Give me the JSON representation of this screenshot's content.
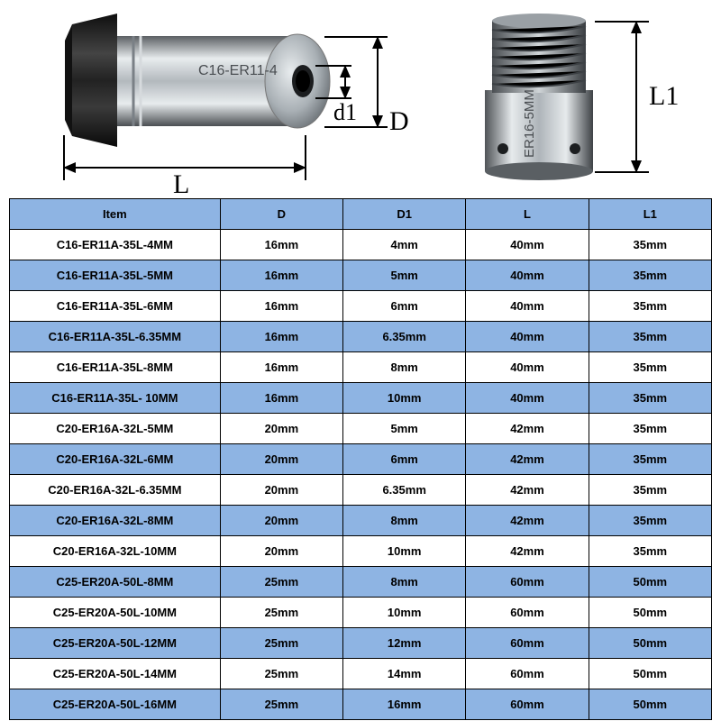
{
  "diagram": {
    "labels": {
      "L": "L",
      "D": "D",
      "d1": "d1",
      "L1": "L1"
    },
    "left_part_text": "C16-ER11-4",
    "right_part_text": "ER16-5MM"
  },
  "table": {
    "header_bg": "#8eb4e3",
    "alt_bg": "#8eb4e3",
    "columns": [
      "Item",
      "D",
      "D1",
      "L",
      "L1"
    ],
    "rows": [
      [
        "C16-ER11A-35L-4MM",
        "16mm",
        "4mm",
        "40mm",
        "35mm"
      ],
      [
        "C16-ER11A-35L-5MM",
        "16mm",
        "5mm",
        "40mm",
        "35mm"
      ],
      [
        "C16-ER11A-35L-6MM",
        "16mm",
        "6mm",
        "40mm",
        "35mm"
      ],
      [
        "C16-ER11A-35L-6.35MM",
        "16mm",
        "6.35mm",
        "40mm",
        "35mm"
      ],
      [
        "C16-ER11A-35L-8MM",
        "16mm",
        "8mm",
        "40mm",
        "35mm"
      ],
      [
        "C16-ER11A-35L- 10MM",
        "16mm",
        "10mm",
        "40mm",
        "35mm"
      ],
      [
        "C20-ER16A-32L-5MM",
        "20mm",
        "5mm",
        "42mm",
        "35mm"
      ],
      [
        "C20-ER16A-32L-6MM",
        "20mm",
        "6mm",
        "42mm",
        "35mm"
      ],
      [
        "C20-ER16A-32L-6.35MM",
        "20mm",
        "6.35mm",
        "42mm",
        "35mm"
      ],
      [
        "C20-ER16A-32L-8MM",
        "20mm",
        "8mm",
        "42mm",
        "35mm"
      ],
      [
        "C20-ER16A-32L-10MM",
        "20mm",
        "10mm",
        "42mm",
        "35mm"
      ],
      [
        "C25-ER20A-50L-8MM",
        "25mm",
        "8mm",
        "60mm",
        "50mm"
      ],
      [
        "C25-ER20A-50L-10MM",
        "25mm",
        "10mm",
        "60mm",
        "50mm"
      ],
      [
        "C25-ER20A-50L-12MM",
        "25mm",
        "12mm",
        "60mm",
        "50mm"
      ],
      [
        "C25-ER20A-50L-14MM",
        "25mm",
        "14mm",
        "60mm",
        "50mm"
      ],
      [
        "C25-ER20A-50L-16MM",
        "25mm",
        "16mm",
        "60mm",
        "50mm"
      ]
    ]
  }
}
